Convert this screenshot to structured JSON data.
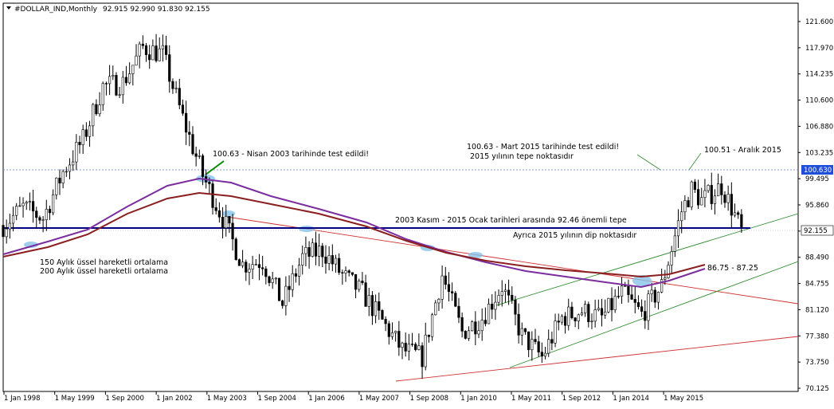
{
  "header": {
    "symbol": "#DOLLAR_IND,Monthly",
    "ohlc": "92.915 92.990 91.830 92.155"
  },
  "colors": {
    "candle": "#000000",
    "ema150": "#8B1E1E",
    "ema200": "#7B2D9E",
    "support": "#000080",
    "channel": "#2E8B2E",
    "trend": "#D03030",
    "highlight": "#87C3E8",
    "ref_line": "#6A7FC0"
  },
  "chart_data": {
    "type": "candlestick",
    "title": "#DOLLAR_IND,Monthly",
    "x_tick_labels": [
      "1 Jan 1998",
      "1 May 1999",
      "1 Sep 2000",
      "1 Jan 2002",
      "1 May 2003",
      "1 Sep 2004",
      "1 Jan 2006",
      "1 May 2007",
      "1 Sep 2008",
      "1 Jan 2010",
      "1 May 2011",
      "1 Sep 2012",
      "1 Jan 2014",
      "1 May 2015"
    ],
    "y_tick_labels": [
      "121.600",
      "117.970",
      "114.235",
      "110.600",
      "106.880",
      "103.235",
      "99.495",
      "95.860",
      "92.155",
      "88.490",
      "84.755",
      "81.120",
      "77.380",
      "73.750",
      "70.125"
    ],
    "ylim": [
      70.125,
      121.6
    ],
    "last_price": "92.155",
    "ref_price": "100.630",
    "approx_monthly_closes": [
      [
        1998.0,
        93.0
      ],
      [
        1998.5,
        95.5
      ],
      [
        1999.0,
        94.0
      ],
      [
        1999.5,
        100.5
      ],
      [
        2000.0,
        105.0
      ],
      [
        2000.5,
        112.5
      ],
      [
        2001.0,
        113.0
      ],
      [
        2001.5,
        118.0
      ],
      [
        2002.0,
        117.0
      ],
      [
        2002.5,
        108.0
      ],
      [
        2003.0,
        100.0
      ],
      [
        2003.5,
        94.0
      ],
      [
        2004.0,
        87.5
      ],
      [
        2004.5,
        88.0
      ],
      [
        2005.0,
        82.0
      ],
      [
        2005.5,
        88.5
      ],
      [
        2006.0,
        89.5
      ],
      [
        2006.5,
        86.0
      ],
      [
        2007.0,
        83.5
      ],
      [
        2007.5,
        79.5
      ],
      [
        2008.0,
        75.5
      ],
      [
        2008.5,
        74.5
      ],
      [
        2009.0,
        86.0
      ],
      [
        2009.5,
        78.0
      ],
      [
        2010.0,
        80.0
      ],
      [
        2010.5,
        84.5
      ],
      [
        2011.0,
        77.5
      ],
      [
        2011.5,
        74.5
      ],
      [
        2012.0,
        80.0
      ],
      [
        2012.5,
        81.0
      ],
      [
        2013.0,
        80.0
      ],
      [
        2013.5,
        83.5
      ],
      [
        2014.0,
        80.5
      ],
      [
        2014.5,
        84.5
      ],
      [
        2015.0,
        95.0
      ],
      [
        2015.25,
        98.0
      ],
      [
        2015.5,
        96.5
      ],
      [
        2016.0,
        98.5
      ],
      [
        2016.25,
        95.5
      ],
      [
        2016.5,
        92.155
      ]
    ],
    "series": [
      {
        "name": "150 Aylık üssel hareketli ortalama",
        "color": "#8B1E1E"
      },
      {
        "name": "200 Aylık üssel hareketli ortalama",
        "color": "#7B2D9E"
      }
    ]
  },
  "annotations": {
    "test_2003": "100.63 - Nisan 2003 tarihinde test edildi!",
    "test_2015_line1": "100.63 - Mart 2015 tarihinde test edildi!",
    "test_2015_line2": "2015 yılının tepe noktasıdır",
    "aralik_2015": "100.51 - Aralık 2015",
    "support_label": "2003 Kasım - 2015 Ocak tarihleri arasında 92.46 önemli tepe",
    "dip_label": "Ayrıca 2015 yılının dip noktasıdır",
    "ema_value_label": "86.75 - 87.25",
    "legend_ema150": "150 Aylık üssel hareketli ortalama",
    "legend_ema200": "200 Aylık üssel hareketli ortalama"
  }
}
